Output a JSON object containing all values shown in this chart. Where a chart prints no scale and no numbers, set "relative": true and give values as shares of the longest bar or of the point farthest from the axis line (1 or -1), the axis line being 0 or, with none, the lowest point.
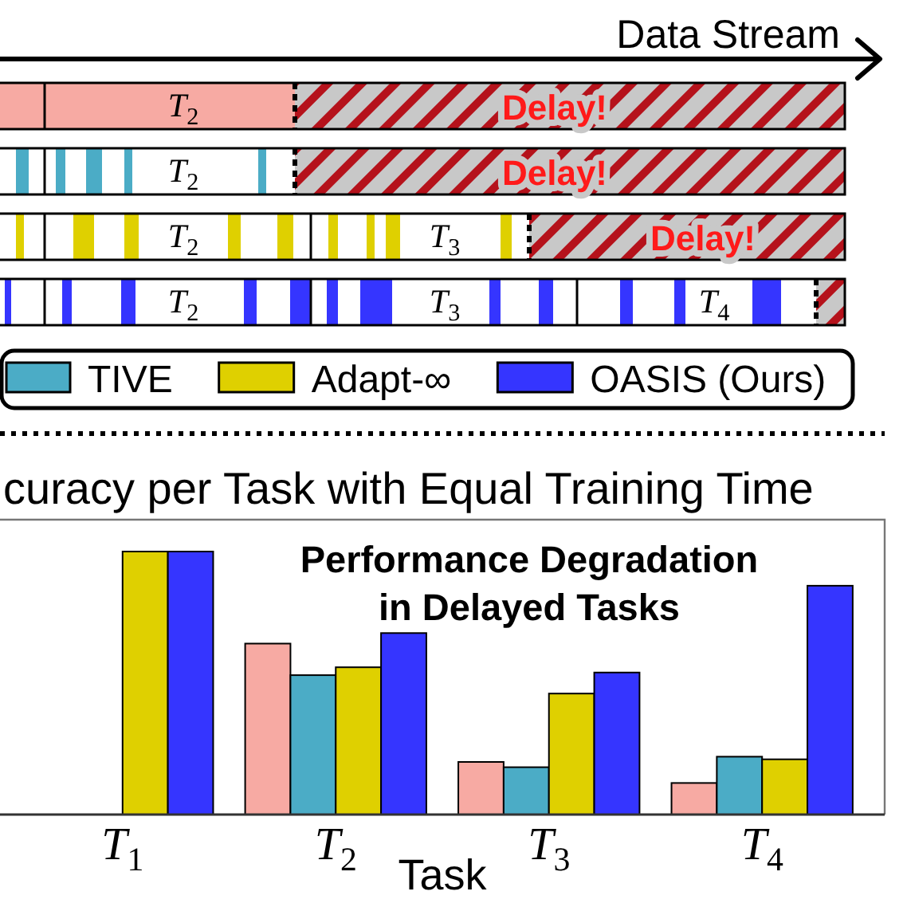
{
  "chart_data": [
    {
      "type": "other",
      "annotations": [
        "Data Stream",
        "T$_{2}$",
        "Delay!",
        "T$_{2}$",
        "Delay!",
        "T$_{2}$",
        "T$_{3}$",
        "Delay!",
        "T$_{2}$",
        "T$_{3}$",
        "T$_{4}$"
      ]
    },
    {
      "type": "bar",
      "title": "curacy per Task with Equal Training Time",
      "xlabel": "Task",
      "categories": [
        "T$_{1}$",
        "T$_{2}$",
        "T$_{3}$",
        "T$_{4}$"
      ],
      "relative": true,
      "legend": "top",
      "series": [
        {
          "color": "#f7aaa3",
          "values": [
            null,
            0.65,
            0.2,
            0.12
          ]
        },
        {
          "name": "TIVE",
          "color": "#4bacc6",
          "values": [
            null,
            0.53,
            0.18,
            0.22
          ]
        },
        {
          "name": "Adapt-∞",
          "color": "#dfd000",
          "values": [
            1,
            0.56,
            0.46,
            0.21
          ]
        },
        {
          "name": "OASIS (Ours)",
          "color": "#3535ff",
          "values": [
            1,
            0.69,
            0.54,
            0.87
          ]
        }
      ],
      "annotations": [
        "Performance Degradation\nin Delayed Tasks"
      ]
    }
  ]
}
